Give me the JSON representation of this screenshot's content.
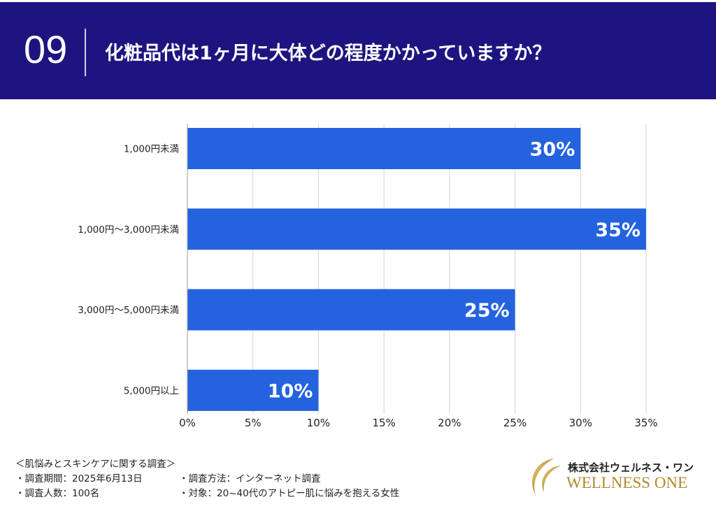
{
  "header": {
    "number": "09",
    "question": "化粧品代は1ヶ月に大体どの程度かかっていますか？",
    "bg_color": "#1e1480"
  },
  "chart_data": {
    "type": "bar",
    "orientation": "horizontal",
    "categories": [
      "1,000円未満",
      "1,000円〜3,000円未満",
      "3,000円〜5,000円未満",
      "5,000円以上"
    ],
    "values": [
      30,
      35,
      25,
      10
    ],
    "data_labels": [
      "30%",
      "35%",
      "25%",
      "10%"
    ],
    "xlim": [
      0,
      35
    ],
    "x_ticks": [
      "0%",
      "5%",
      "10%",
      "15%",
      "20%",
      "25%",
      "30%",
      "35%"
    ],
    "grid": "vertical",
    "bar_color": "#2563de"
  },
  "footer": {
    "survey_title": "＜肌悩みとスキンケアに関する調査＞",
    "period": "・調査期間：2025年6月13日",
    "method": "・調査方法：インターネット調査",
    "count": "・調査人数：100名",
    "target": "・対象：20~40代のアトピー肌に悩みを抱える女性"
  },
  "logo": {
    "company_jp": "株式会社ウェルネス・ワン",
    "company_en": "WELLNESS ONE",
    "color": "#b08a2e"
  }
}
